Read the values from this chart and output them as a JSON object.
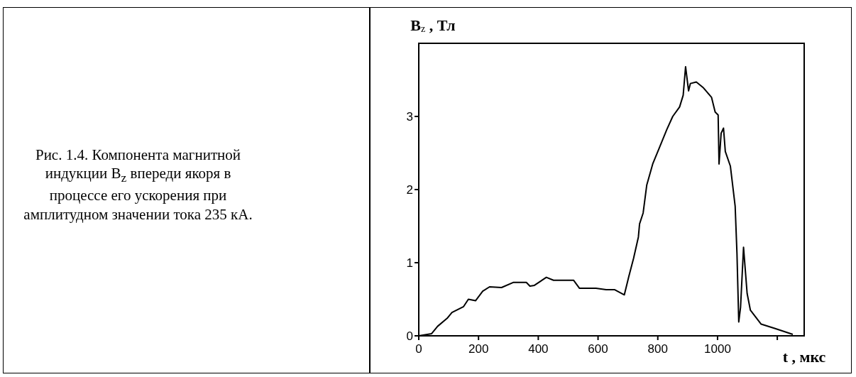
{
  "chart_data": {
    "type": "line",
    "xlabel": "t , мкс",
    "ylabel": "B$_{z}$ , Тл",
    "annotations": [
      "Рис. 1.4. Компонента магнитной индукции B$_{z}$ впереди якоря в процессе его ускорения при амплитудном значении тока 235 кА."
    ],
    "x": [
      0,
      43,
      63,
      95,
      111,
      150,
      166,
      190,
      214,
      237,
      277,
      316,
      360,
      372,
      387,
      427,
      451,
      518,
      538,
      593,
      627,
      656,
      688,
      703,
      719,
      735,
      739,
      751,
      763,
      783,
      806,
      830,
      850,
      873,
      885,
      893,
      903,
      909,
      929,
      953,
      980,
      992,
      1002,
      1005,
      1012,
      1020,
      1026,
      1043,
      1059,
      1065,
      1071,
      1077,
      1087,
      1099,
      1110,
      1146,
      1193,
      1252
    ],
    "series": [
      {
        "color": "#000000",
        "values": [
          0,
          0.03,
          0.13,
          0.24,
          0.32,
          0.4,
          0.5,
          0.48,
          0.61,
          0.67,
          0.66,
          0.73,
          0.73,
          0.68,
          0.69,
          0.8,
          0.76,
          0.76,
          0.65,
          0.65,
          0.63,
          0.63,
          0.56,
          0.81,
          1.06,
          1.35,
          1.53,
          1.68,
          2.06,
          2.35,
          2.58,
          2.82,
          3.0,
          3.13,
          3.29,
          3.68,
          3.35,
          3.45,
          3.47,
          3.39,
          3.26,
          3.06,
          3.02,
          2.35,
          2.77,
          2.84,
          2.52,
          2.32,
          1.77,
          1.13,
          0.19,
          0.39,
          1.21,
          0.58,
          0.35,
          0.16,
          0.1,
          0.02
        ]
      }
    ],
    "xlim": [
      0,
      1290
    ],
    "xticks": [
      0,
      200,
      400,
      600,
      800,
      1000,
      {
        "value": 1200,
        "label": null
      }
    ],
    "ylim": [
      0,
      4
    ],
    "yticks": [
      0,
      1,
      2,
      3
    ],
    "grid": false,
    "marker": "none",
    "line_style": "solid"
  }
}
